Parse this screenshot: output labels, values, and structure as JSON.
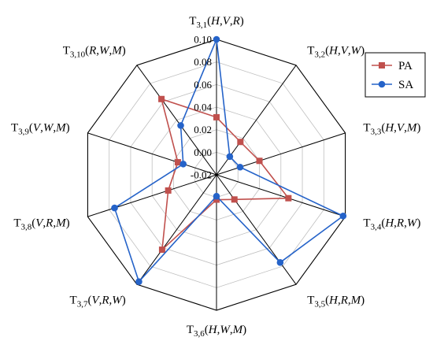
{
  "chart_data": {
    "type": "radar",
    "axes": [
      {
        "base": "T",
        "sub": "3,1",
        "args": "H,V,R"
      },
      {
        "base": "T",
        "sub": "3,2",
        "args": "H,V,W"
      },
      {
        "base": "T",
        "sub": "3,3",
        "args": "H,V,M"
      },
      {
        "base": "T",
        "sub": "3,4",
        "args": "H,R,W"
      },
      {
        "base": "T",
        "sub": "3,5",
        "args": "H,R,M"
      },
      {
        "base": "T",
        "sub": "3,6",
        "args": "H,W,M"
      },
      {
        "base": "T",
        "sub": "3,7",
        "args": "V,R,W"
      },
      {
        "base": "T",
        "sub": "3,8",
        "args": "V,R,M"
      },
      {
        "base": "T",
        "sub": "3,9",
        "args": "V,W,M"
      },
      {
        "base": "T",
        "sub": "3,10",
        "args": "R,W,M"
      }
    ],
    "ticks": [
      "-0.02",
      "0.00",
      "0.02",
      "0.04",
      "0.06",
      "0.08",
      "0.10"
    ],
    "range": [
      -0.02,
      0.1
    ],
    "series": [
      {
        "name": "PA",
        "color": "#c0504d",
        "marker": "square",
        "values": [
          0.031,
          0.016,
          0.02,
          0.047,
          0.007,
          0.002,
          0.062,
          0.025,
          0.016,
          0.063
        ]
      },
      {
        "name": "SA",
        "color": "#2563c9",
        "marker": "circle",
        "values": [
          0.1,
          0.0,
          0.002,
          0.098,
          0.076,
          -0.001,
          0.097,
          0.075,
          0.011,
          0.034
        ]
      }
    ],
    "grid": true,
    "legend_position": "top-right"
  }
}
